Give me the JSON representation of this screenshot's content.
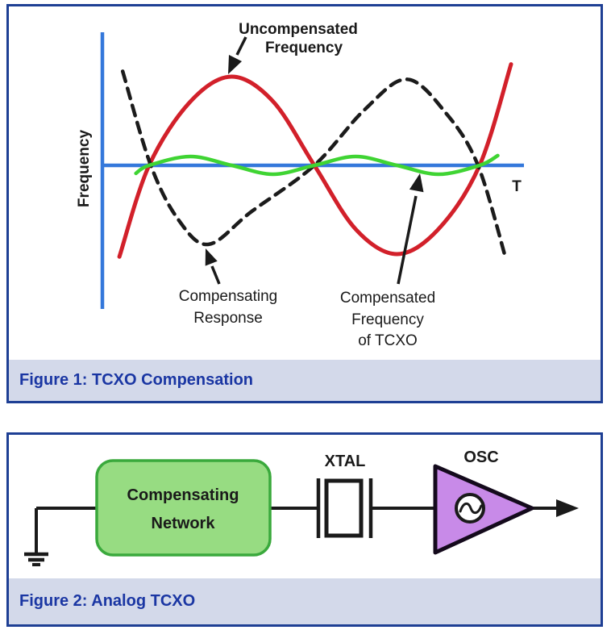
{
  "figure1": {
    "caption": "Figure 1: TCXO Compensation",
    "ylabel": "Frequency",
    "xlabel": "T",
    "labels": {
      "uncompensated_line1": "Uncompensated",
      "uncompensated_line2": "Frequency",
      "compensating_line1": "Compensating",
      "compensating_line2": "Response",
      "compensated_line1": "Compensated",
      "compensated_line2": "Frequency",
      "compensated_line3": "of TCXO"
    },
    "colors": {
      "axis": "#3478db",
      "border": "#1e3f94",
      "caption_bg": "#d3d9ea",
      "caption_text": "#1a36a3"
    }
  },
  "figure2": {
    "caption": "Figure 2: Analog TCXO",
    "network_label_line1": "Compensating",
    "network_label_line2": "Network",
    "xtal_label": "XTAL",
    "osc_label": "OSC",
    "colors": {
      "network_fill": "#97dc82",
      "network_border": "#3aa93c",
      "osc_fill": "#c88ae8",
      "wire": "#1a1a1a"
    }
  },
  "chart_data": {
    "type": "line",
    "title": "TCXO Compensation",
    "xlabel": "T",
    "ylabel": "Frequency",
    "axis_note": "conceptual unlabeled axes; x in half-periods of temperature curve, y relative frequency deviation",
    "xlim": [
      -0.3,
      2.3
    ],
    "ylim": [
      -1.3,
      1.3
    ],
    "grid": false,
    "legend": "none (arrow annotations instead)",
    "series": [
      {
        "name": "Uncompensated Frequency",
        "color": "#d2202a",
        "style": "solid",
        "x": [
          -0.18,
          0,
          0.25,
          0.5,
          0.75,
          1,
          1.25,
          1.5,
          1.75,
          2,
          2.19
        ],
        "y": [
          -1.03,
          0,
          0.72,
          1,
          0.72,
          0,
          -0.72,
          -1,
          -0.72,
          0,
          1.14
        ]
      },
      {
        "name": "Compensating Response",
        "color": "#1b1b1b",
        "style": "dashed",
        "x": [
          -0.16,
          0.01,
          0.18,
          0.36,
          0.62,
          1,
          1.3,
          1.56,
          1.8,
          1.99,
          2.16
        ],
        "y": [
          1.06,
          0,
          -0.62,
          -0.89,
          -0.52,
          0,
          0.62,
          0.97,
          0.58,
          0,
          -1.06
        ]
      },
      {
        "name": "Compensated Frequency of TCXO",
        "color": "#3fd433",
        "style": "solid",
        "x": [
          -0.08,
          0,
          0.25,
          0.5,
          0.75,
          1,
          1.25,
          1.5,
          1.75,
          2,
          2.11
        ],
        "y": [
          -0.09,
          0,
          0.1,
          0,
          -0.1,
          0,
          0.1,
          0,
          -0.1,
          0,
          0.11
        ]
      }
    ]
  }
}
